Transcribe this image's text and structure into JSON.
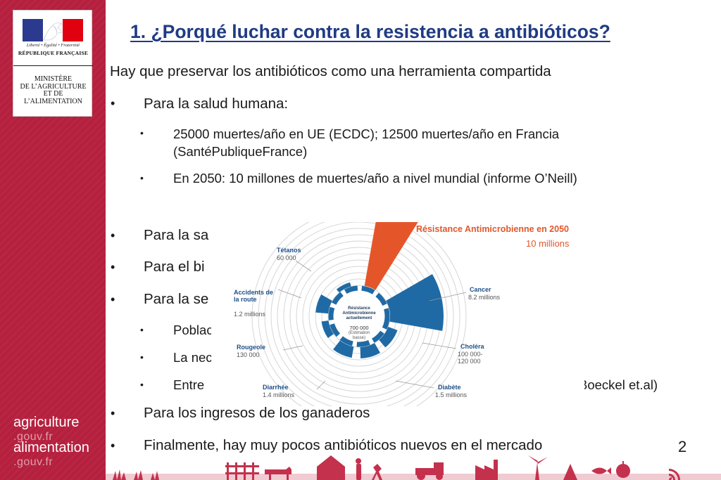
{
  "sidebar": {
    "logo": {
      "motto": "Liberté • Égalité • Fraternité",
      "republique": "RÉPUBLIQUE FRANÇAISE",
      "ministry": "MINISTÈRE\nDE L’AGRICULTURE\nET DE\nL’ALIMENTATION",
      "flag_colors": [
        "#2b3a8f",
        "#ffffff",
        "#e1000f"
      ]
    },
    "brand_lines": [
      {
        "main": "agriculture",
        "sub": ".gouv.fr"
      },
      {
        "main": "alimentation",
        "sub": ".gouv.fr"
      }
    ],
    "band_color": "#b5203e"
  },
  "slide": {
    "title": "1. ¿Porqué luchar contra la resistencia a antibióticos?",
    "intro": "Hay que preservar los antibióticos como una herramienta compartida",
    "bullet_char": "•",
    "items": [
      "Para la salud humana:",
      "25000 muertes/año en UE (ECDC); 12500 muertes/año en Francia",
      "(SantéPubliqueFrance)",
      "En 2050: 10 millones de muertes/año a nivel mundial (informe O’Neill)",
      "Para  la sa",
      "Para el bi",
      "Para la se",
      "Poblac",
      "La nec",
      "Entre ",
      "Boeckel et.al)",
      "Para los ingresos de los ganaderos",
      "Finalmente, hay muy pocos antibióticos nuevos en el mercado"
    ],
    "page_number": "2",
    "title_color": "#1f3b84"
  },
  "infographic": {
    "headline": "Résistance Antimicrobienne en 2050",
    "headline_value": "10 millions",
    "center": {
      "label": "Résistance\nAntimicrobienne\nactuellement",
      "value": "700 000",
      "estimate": "(Estimation\nbasse)"
    },
    "categories": [
      {
        "name": "Tétanos",
        "value": "60 000"
      },
      {
        "name": "Cancer",
        "value": "8.2 millions"
      },
      {
        "name": "Accidents de\nla route",
        "value": "1.2 millions"
      },
      {
        "name": "Choléra",
        "value": "100 000-\n120 000"
      },
      {
        "name": "Rougeole",
        "value": "130 000"
      },
      {
        "name": "Diarrhée",
        "value": "1.4 millions"
      },
      {
        "name": "Diabète",
        "value": "1.5 millions"
      }
    ],
    "colors": {
      "highlight": "#e4562a",
      "primary": "#1f6aa5",
      "label": "#1f4f86"
    }
  }
}
